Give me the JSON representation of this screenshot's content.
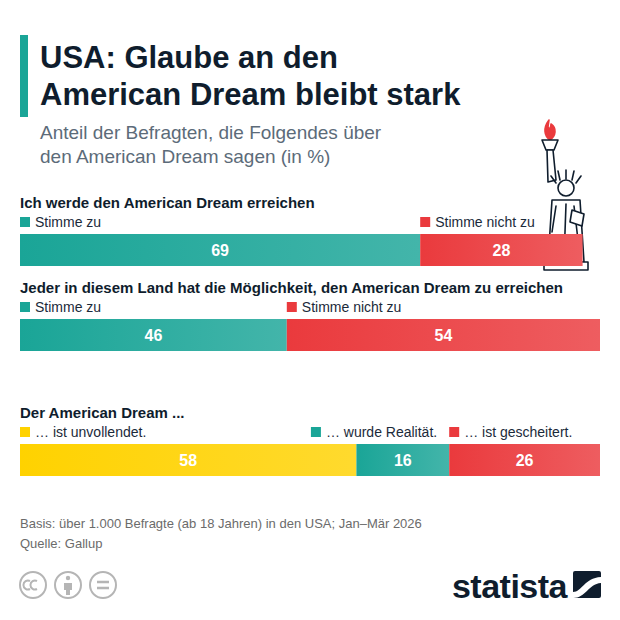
{
  "header": {
    "title": "USA: Glaube an den\nAmerican Dream bleibt stark",
    "subtitle": "Anteil der Befragten, die Folgendes über\nden American Dream sagen (in %)"
  },
  "chart_data": [
    {
      "type": "bar",
      "orientation": "horizontal",
      "stacked": true,
      "data_labels": true,
      "tick_labels": false,
      "legend": "top",
      "title": "Ich werde den American Dream erreichen",
      "xlim": [
        0,
        100
      ],
      "series": [
        {
          "name": "Stimme zu",
          "color": "#1aa597",
          "values": [
            69
          ]
        },
        {
          "name": "Stimme nicht zu",
          "color": "#ea3a3d",
          "values": [
            28
          ]
        }
      ]
    },
    {
      "type": "bar",
      "orientation": "horizontal",
      "stacked": true,
      "data_labels": true,
      "tick_labels": false,
      "legend": "top",
      "title": "Jeder in diesem Land hat die Möglichkeit, den American Dream zu erreichen",
      "xlim": [
        0,
        100
      ],
      "series": [
        {
          "name": "Stimme zu",
          "color": "#1aa597",
          "values": [
            46
          ]
        },
        {
          "name": "Stimme nicht zu",
          "color": "#ea3a3d",
          "values": [
            54
          ]
        }
      ]
    },
    {
      "type": "bar",
      "orientation": "horizontal",
      "stacked": true,
      "data_labels": true,
      "tick_labels": false,
      "legend": "top",
      "title": "Der American Dream ...",
      "xlim": [
        0,
        100
      ],
      "series": [
        {
          "name": "… ist unvollendet.",
          "color": "#ffd200",
          "values": [
            58
          ]
        },
        {
          "name": "… wurde Realität.",
          "color": "#1aa597",
          "values": [
            16
          ]
        },
        {
          "name": "… ist gescheitert.",
          "color": "#ea3a3d",
          "values": [
            26
          ]
        }
      ]
    }
  ],
  "footer": {
    "note": "Basis: über 1.000 Befragte (ab 18 Jahren) in den USA; Jan–Mär 2026",
    "source": "Quelle: Gallup",
    "brand": "statista"
  }
}
